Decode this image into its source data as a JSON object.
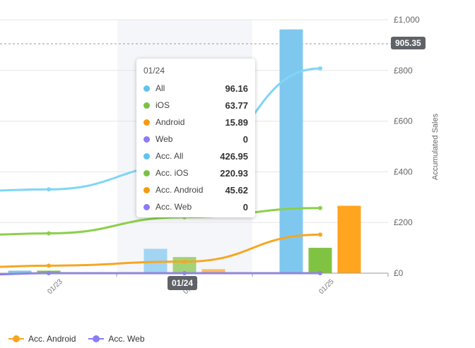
{
  "chart_data": {
    "type": "bar",
    "categories": [
      "01/23",
      "01/24",
      "01/25"
    ],
    "ylabel": "Accumulated Sales",
    "ylim": [
      0,
      1000
    ],
    "yticks": [
      "£0",
      "£200",
      "£400",
      "£600",
      "£800",
      "£1,000"
    ],
    "series": [
      {
        "name": "All",
        "kind": "bar",
        "color": "#7ec8ef",
        "values": [
          10,
          96.16,
          962
        ]
      },
      {
        "name": "iOS",
        "kind": "bar",
        "color": "#80c342",
        "values": [
          10,
          63.77,
          100
        ]
      },
      {
        "name": "Android",
        "kind": "bar",
        "color": "#ffa51f",
        "values": [
          0,
          15.89,
          266
        ]
      },
      {
        "name": "Acc. All",
        "kind": "line",
        "color": "#7fd6f5",
        "values": [
          330.79,
          426.95,
          808
        ]
      },
      {
        "name": "Acc. iOS",
        "kind": "line",
        "color": "#8bd04a",
        "values": [
          157.16,
          220.93,
          257
        ]
      },
      {
        "name": "Acc. Android",
        "kind": "line",
        "color": "#f6a623",
        "values": [
          29.73,
          45.62,
          152
        ]
      },
      {
        "name": "Acc. Web",
        "kind": "line",
        "color": "#8b7cf6",
        "values": [
          0,
          0,
          0
        ]
      }
    ],
    "reference_line": {
      "value": 905.35,
      "label": "905.35"
    },
    "highlighted_category": "01/24",
    "grid": true
  },
  "tooltip": {
    "title": "01/24",
    "rows": [
      {
        "name": "All",
        "value": "96.16",
        "color": "#64c3ed"
      },
      {
        "name": "iOS",
        "value": "63.77",
        "color": "#7ac143"
      },
      {
        "name": "Android",
        "value": "15.89",
        "color": "#f59b0f"
      },
      {
        "name": "Web",
        "value": "0",
        "color": "#8b7cf6"
      },
      {
        "name": "Acc. All",
        "value": "426.95",
        "color": "#64c3ed"
      },
      {
        "name": "Acc. iOS",
        "value": "220.93",
        "color": "#7ac143"
      },
      {
        "name": "Acc. Android",
        "value": "45.62",
        "color": "#f59b0f"
      },
      {
        "name": "Acc. Web",
        "value": "0",
        "color": "#8b7cf6"
      }
    ]
  },
  "crosshair_label": "01/24",
  "legend": [
    {
      "name": "Acc. Android",
      "color": "#f6a623"
    },
    {
      "name": "Acc. Web",
      "color": "#8b7cf6"
    }
  ]
}
